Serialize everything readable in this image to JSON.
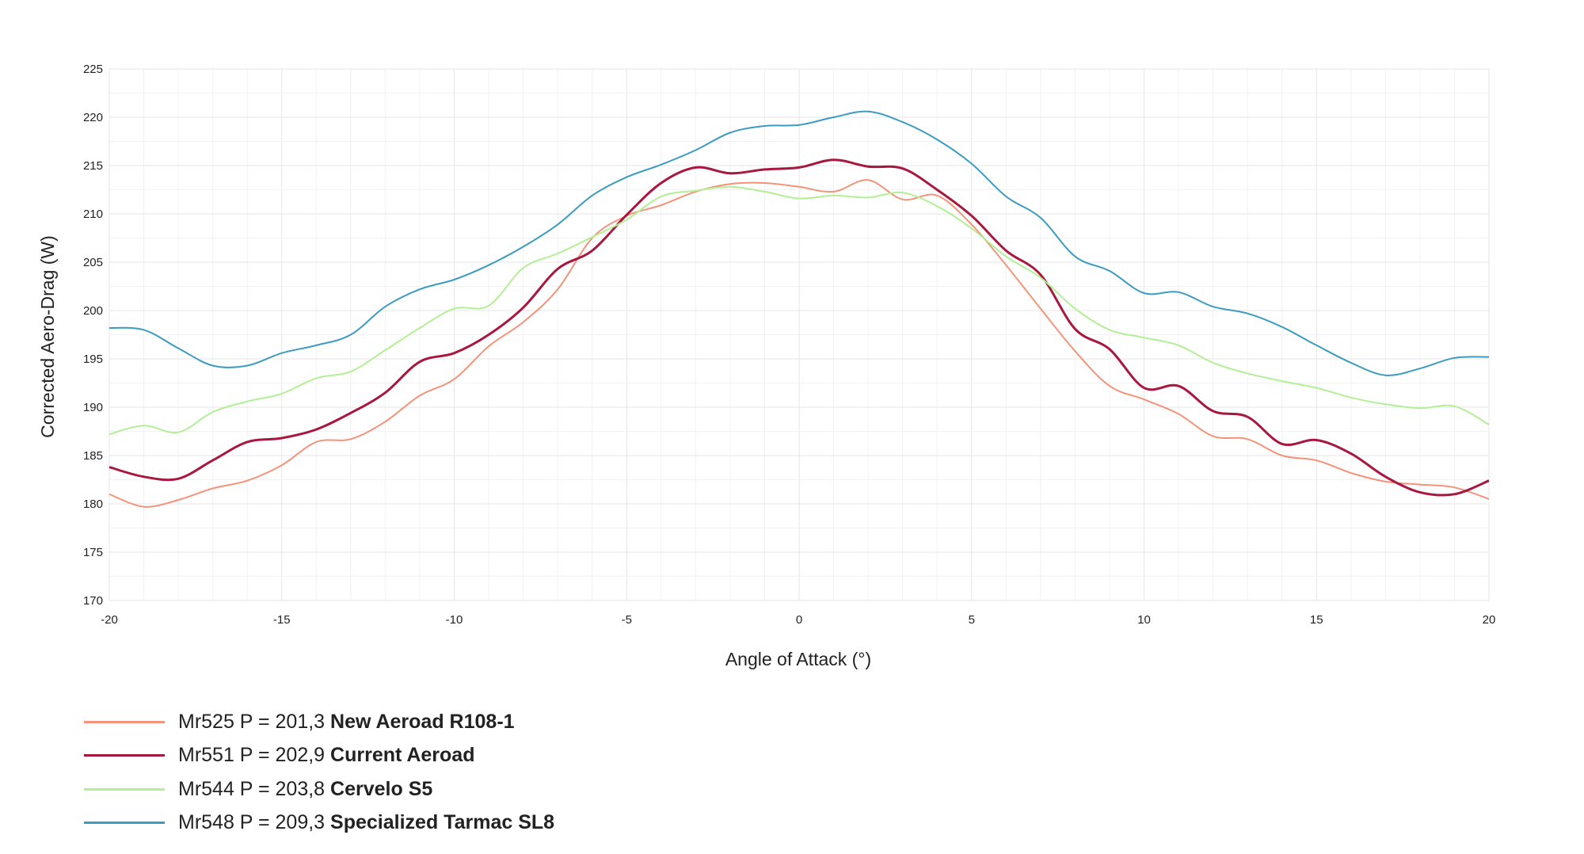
{
  "chart_data": {
    "type": "line",
    "xlabel": "Angle of Attack (°)",
    "ylabel": "Corrected Aero-Drag (W)",
    "xlim": [
      -20,
      20
    ],
    "ylim": [
      170,
      225
    ],
    "xticks": [
      -20,
      -15,
      -10,
      -5,
      0,
      5,
      10,
      15,
      20
    ],
    "yticks": [
      170,
      175,
      180,
      185,
      190,
      195,
      200,
      205,
      210,
      215,
      220,
      225
    ],
    "grid": true,
    "legend_position": "bottom-left",
    "series": [
      {
        "name": "New Aeroad R108-1",
        "label_prefix": "Mr525 P = 201,3",
        "color": "#f4937a",
        "points": [
          [
            -20,
            181.0
          ],
          [
            -19,
            179.7
          ],
          [
            -18,
            180.4
          ],
          [
            -17,
            181.6
          ],
          [
            -16,
            182.4
          ],
          [
            -15,
            184.0
          ],
          [
            -14,
            186.4
          ],
          [
            -13,
            186.7
          ],
          [
            -12,
            188.5
          ],
          [
            -11,
            191.2
          ],
          [
            -10,
            192.9
          ],
          [
            -9,
            196.3
          ],
          [
            -8,
            198.8
          ],
          [
            -7,
            202.2
          ],
          [
            -6,
            207.5
          ],
          [
            -5,
            209.8
          ],
          [
            -4,
            210.9
          ],
          [
            -3,
            212.3
          ],
          [
            -2,
            213.1
          ],
          [
            -1,
            213.2
          ],
          [
            0,
            212.8
          ],
          [
            1,
            212.3
          ],
          [
            2,
            213.5
          ],
          [
            3,
            211.5
          ],
          [
            4,
            211.9
          ],
          [
            5,
            208.9
          ],
          [
            6,
            204.7
          ],
          [
            7,
            200.2
          ],
          [
            8,
            195.8
          ],
          [
            9,
            192.2
          ],
          [
            10,
            190.8
          ],
          [
            11,
            189.3
          ],
          [
            12,
            187.0
          ],
          [
            13,
            186.7
          ],
          [
            14,
            185.0
          ],
          [
            15,
            184.5
          ],
          [
            16,
            183.2
          ],
          [
            17,
            182.3
          ],
          [
            18,
            182.0
          ],
          [
            19,
            181.7
          ],
          [
            20,
            180.5
          ]
        ]
      },
      {
        "name": "Current Aeroad",
        "label_prefix": "Mr551 P = 202,9",
        "color": "#a8173f",
        "points": [
          [
            -20,
            183.8
          ],
          [
            -19,
            182.8
          ],
          [
            -18,
            182.6
          ],
          [
            -17,
            184.5
          ],
          [
            -16,
            186.4
          ],
          [
            -15,
            186.8
          ],
          [
            -14,
            187.7
          ],
          [
            -13,
            189.4
          ],
          [
            -12,
            191.5
          ],
          [
            -11,
            194.7
          ],
          [
            -10,
            195.6
          ],
          [
            -9,
            197.5
          ],
          [
            -8,
            200.3
          ],
          [
            -7,
            204.3
          ],
          [
            -6,
            206.2
          ],
          [
            -5,
            209.9
          ],
          [
            -4,
            213.2
          ],
          [
            -3,
            214.8
          ],
          [
            -2,
            214.2
          ],
          [
            -1,
            214.6
          ],
          [
            0,
            214.8
          ],
          [
            1,
            215.6
          ],
          [
            2,
            214.9
          ],
          [
            3,
            214.7
          ],
          [
            4,
            212.5
          ],
          [
            5,
            209.8
          ],
          [
            6,
            206.2
          ],
          [
            7,
            203.7
          ],
          [
            8,
            198.1
          ],
          [
            9,
            196.0
          ],
          [
            10,
            192.0
          ],
          [
            11,
            192.2
          ],
          [
            12,
            189.6
          ],
          [
            13,
            189.0
          ],
          [
            14,
            186.2
          ],
          [
            15,
            186.6
          ],
          [
            16,
            185.2
          ],
          [
            17,
            182.8
          ],
          [
            18,
            181.2
          ],
          [
            19,
            181.0
          ],
          [
            20,
            182.4
          ]
        ]
      },
      {
        "name": "Cervelo S5",
        "label_prefix": "Mr544 P = 203,8",
        "color": "#b3ef95",
        "points": [
          [
            -20,
            187.2
          ],
          [
            -19,
            188.1
          ],
          [
            -18,
            187.4
          ],
          [
            -17,
            189.5
          ],
          [
            -16,
            190.6
          ],
          [
            -15,
            191.4
          ],
          [
            -14,
            193.0
          ],
          [
            -13,
            193.7
          ],
          [
            -12,
            195.9
          ],
          [
            -11,
            198.2
          ],
          [
            -10,
            200.2
          ],
          [
            -9,
            200.5
          ],
          [
            -8,
            204.4
          ],
          [
            -7,
            205.9
          ],
          [
            -6,
            207.6
          ],
          [
            -5,
            209.4
          ],
          [
            -4,
            211.8
          ],
          [
            -3,
            212.4
          ],
          [
            -2,
            212.8
          ],
          [
            -1,
            212.3
          ],
          [
            0,
            211.6
          ],
          [
            1,
            211.9
          ],
          [
            2,
            211.7
          ],
          [
            3,
            212.2
          ],
          [
            4,
            210.8
          ],
          [
            5,
            208.5
          ],
          [
            6,
            205.6
          ],
          [
            7,
            203.4
          ],
          [
            8,
            200.2
          ],
          [
            9,
            198.0
          ],
          [
            10,
            197.2
          ],
          [
            11,
            196.4
          ],
          [
            12,
            194.6
          ],
          [
            13,
            193.5
          ],
          [
            14,
            192.7
          ],
          [
            15,
            192.0
          ],
          [
            16,
            191.0
          ],
          [
            17,
            190.3
          ],
          [
            18,
            189.9
          ],
          [
            19,
            190.1
          ],
          [
            20,
            188.2
          ]
        ]
      },
      {
        "name": "Specialized Tarmac SL8",
        "label_prefix": "Mr548 P = 209,3",
        "color": "#3b9bc0",
        "points": [
          [
            -20,
            198.2
          ],
          [
            -19,
            198.0
          ],
          [
            -18,
            196.1
          ],
          [
            -17,
            194.3
          ],
          [
            -16,
            194.3
          ],
          [
            -15,
            195.6
          ],
          [
            -14,
            196.4
          ],
          [
            -13,
            197.5
          ],
          [
            -12,
            200.4
          ],
          [
            -11,
            202.2
          ],
          [
            -10,
            203.2
          ],
          [
            -9,
            204.7
          ],
          [
            -8,
            206.6
          ],
          [
            -7,
            208.9
          ],
          [
            -6,
            211.9
          ],
          [
            -5,
            213.8
          ],
          [
            -4,
            215.1
          ],
          [
            -3,
            216.6
          ],
          [
            -2,
            218.4
          ],
          [
            -1,
            219.1
          ],
          [
            0,
            219.2
          ],
          [
            1,
            220.0
          ],
          [
            2,
            220.6
          ],
          [
            3,
            219.5
          ],
          [
            4,
            217.7
          ],
          [
            5,
            215.2
          ],
          [
            6,
            211.8
          ],
          [
            7,
            209.6
          ],
          [
            8,
            205.6
          ],
          [
            9,
            204.1
          ],
          [
            10,
            201.8
          ],
          [
            11,
            201.9
          ],
          [
            12,
            200.4
          ],
          [
            13,
            199.7
          ],
          [
            14,
            198.3
          ],
          [
            15,
            196.4
          ],
          [
            16,
            194.6
          ],
          [
            17,
            193.3
          ],
          [
            18,
            194.0
          ],
          [
            19,
            195.1
          ],
          [
            20,
            195.2
          ]
        ]
      }
    ]
  },
  "legend": {
    "items": [
      {
        "prefix": "Mr525 P = 201,3",
        "name": "New Aeroad R108-1",
        "color": "#f4937a"
      },
      {
        "prefix": "Mr551 P = 202,9",
        "name": "Current Aeroad",
        "color": "#a8173f"
      },
      {
        "prefix": "Mr544 P = 203,8",
        "name": "Cervelo S5",
        "color": "#b3ef95"
      },
      {
        "prefix": "Mr548 P = 209,3",
        "name": "Specialized Tarmac SL8",
        "color": "#3b9bc0"
      }
    ]
  }
}
